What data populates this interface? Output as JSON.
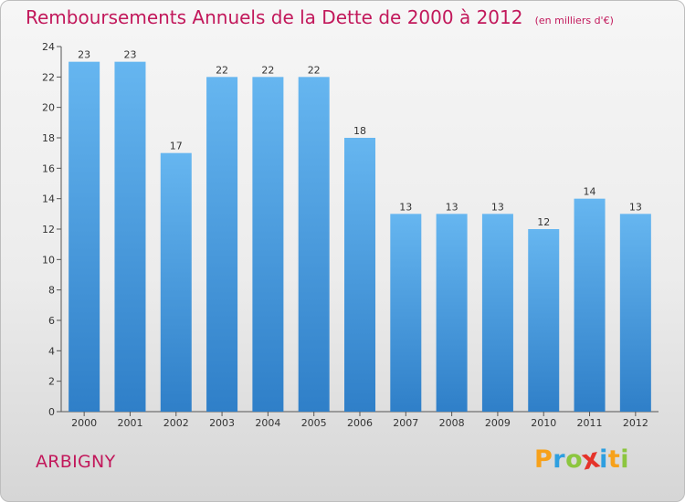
{
  "chart_data": {
    "type": "bar",
    "title": "Remboursements Annuels de la Dette de 2000 à 2012",
    "subtitle": "(en milliers d'€)",
    "categories": [
      "2000",
      "2001",
      "2002",
      "2003",
      "2004",
      "2005",
      "2006",
      "2007",
      "2008",
      "2009",
      "2010",
      "2011",
      "2012"
    ],
    "values": [
      23,
      23,
      17,
      22,
      22,
      22,
      18,
      13,
      13,
      13,
      12,
      14,
      13
    ],
    "ylim": [
      0,
      24
    ],
    "yticks": [
      0,
      2,
      4,
      6,
      8,
      10,
      12,
      14,
      16,
      18,
      20,
      22,
      24
    ],
    "grid": false,
    "bar_color": "#4a9fe0",
    "bar_color_top": "#66b6f0",
    "bar_color_bottom": "#2f7fc8"
  },
  "commune": "ARBIGNY",
  "logo": {
    "text": "Proxiti",
    "letters": [
      {
        "ch": "P",
        "color": "#f7a11a"
      },
      {
        "ch": "r",
        "color": "#2e9fe0"
      },
      {
        "ch": "o",
        "color": "#8cc63f"
      },
      {
        "ch": "x",
        "color": "#e5332a"
      },
      {
        "ch": "i",
        "color": "#2e9fe0"
      },
      {
        "ch": "t",
        "color": "#f7a11a"
      },
      {
        "ch": "i",
        "color": "#8cc63f"
      }
    ]
  }
}
